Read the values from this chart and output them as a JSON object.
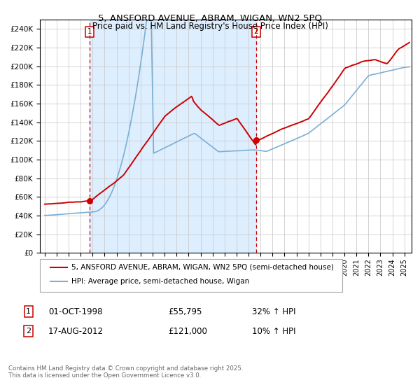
{
  "title": "5, ANSFORD AVENUE, ABRAM, WIGAN, WN2 5PQ",
  "subtitle": "Price paid vs. HM Land Registry's House Price Index (HPI)",
  "legend_property": "5, ANSFORD AVENUE, ABRAM, WIGAN, WN2 5PQ (semi-detached house)",
  "legend_hpi": "HPI: Average price, semi-detached house, Wigan",
  "annotation1_label": "1",
  "annotation1_date": "01-OCT-1998",
  "annotation1_price": "£55,795",
  "annotation1_hpi": "32% ↑ HPI",
  "annotation2_label": "2",
  "annotation2_date": "17-AUG-2012",
  "annotation2_price": "£121,000",
  "annotation2_hpi": "10% ↑ HPI",
  "footnote": "Contains HM Land Registry data © Crown copyright and database right 2025.\nThis data is licensed under the Open Government Licence v3.0.",
  "property_color": "#cc0000",
  "hpi_color": "#7bafd4",
  "shade_color": "#ddeeff",
  "background_color": "#ffffff",
  "grid_color": "#cccccc",
  "ylim": [
    0,
    250000
  ],
  "yticks": [
    0,
    20000,
    40000,
    60000,
    80000,
    100000,
    120000,
    140000,
    160000,
    180000,
    200000,
    220000,
    240000
  ],
  "purchase1_year": 1998.75,
  "purchase1_price": 55795,
  "purchase2_year": 2012.625,
  "purchase2_price": 121000,
  "vline1_year": 1998.75,
  "vline2_year": 2012.625,
  "start_year": 1995.0,
  "end_year": 2025.5
}
